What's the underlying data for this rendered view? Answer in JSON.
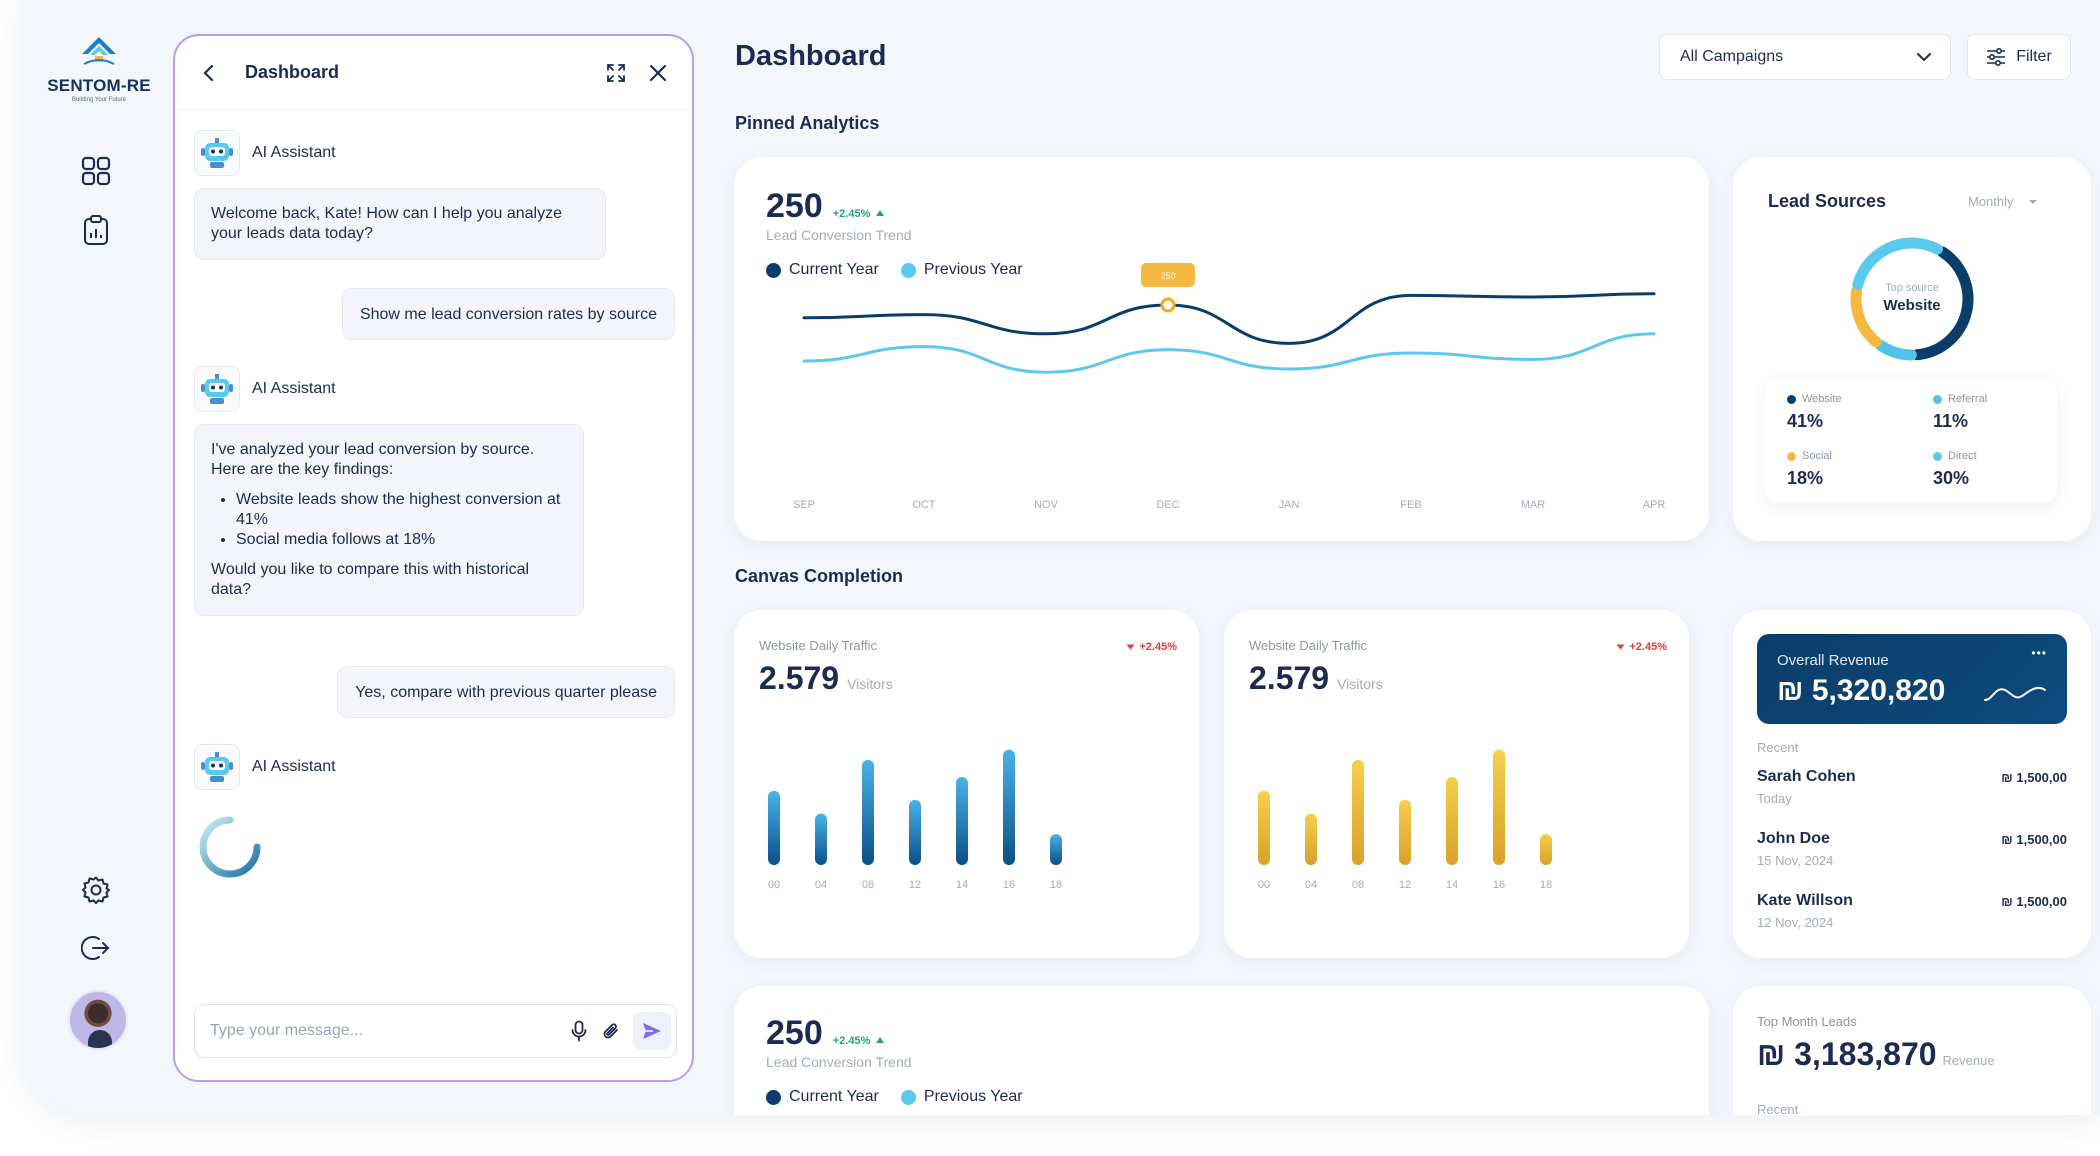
{
  "brand": {
    "name": "SENTOM-RE",
    "tagline": "Building Your Future"
  },
  "chat": {
    "title": "Dashboard",
    "assistant_name": "AI Assistant",
    "messages": {
      "ai1": "Welcome back, Kate! How can I help you analyze your leads data today?",
      "user1": "Show me lead conversion rates by source",
      "ai2_intro": "I've analyzed your lead conversion by source. Here are the key findings:",
      "ai2_bullet1": "Website leads show the highest conversion at 41%",
      "ai2_bullet2": "Social media follows at 18%",
      "ai2_outro": "Would you like to compare this with historical data?",
      "user2": "Yes, compare with previous quarter please"
    },
    "input_placeholder": "Type your message..."
  },
  "header": {
    "title": "Dashboard",
    "campaign_select": "All Campaigns",
    "filter_label": "Filter"
  },
  "sections": {
    "pinned": "Pinned Analytics",
    "canvas": "Canvas Completion"
  },
  "trend": {
    "value": "250",
    "change": "+2.45%",
    "label": "Lead Conversion Trend",
    "legend_current": "Current Year",
    "legend_previous": "Previous Year",
    "tooltip": "250"
  },
  "lead_sources": {
    "title": "Lead Sources",
    "period": "Monthly",
    "center_caption": "Top source",
    "center_value": "Website",
    "items": [
      {
        "name": "Website",
        "value": "41%",
        "color": "#0b3d6a"
      },
      {
        "name": "Referral",
        "value": "11%",
        "color": "#4fc3e8"
      },
      {
        "name": "Social",
        "value": "18%",
        "color": "#f5b942"
      },
      {
        "name": "Direct",
        "value": "30%",
        "color": "#5bc8ee"
      }
    ]
  },
  "traffic1": {
    "title": "Website Daily Traffic",
    "value": "2.579",
    "unit": "Visitors",
    "change": "+2.45%"
  },
  "traffic2": {
    "title": "Website Daily Traffic",
    "value": "2.579",
    "unit": "Visitors",
    "change": "+2.45%"
  },
  "revenue": {
    "title": "Overall Revenue",
    "value": "₪ 5,320,820",
    "more": "•••",
    "recent_label": "Recent",
    "recent": [
      {
        "name": "Sarah Cohen",
        "date": "Today",
        "amount": "₪ 1,500,00"
      },
      {
        "name": "John Doe",
        "date": "15 Nov, 2024",
        "amount": "₪ 1,500,00"
      },
      {
        "name": "Kate Willson",
        "date": "12 Nov, 2024",
        "amount": "₪ 1,500,00"
      }
    ]
  },
  "trend2": {
    "value": "250",
    "change": "+2.45%",
    "label": "Lead Conversion Trend",
    "legend_current": "Current Year",
    "legend_previous": "Previous Year"
  },
  "top_month": {
    "title": "Top Month Leads",
    "value": "₪ 3,183,870",
    "unit": "Revenue",
    "recent_label": "Recent"
  },
  "chart_data": [
    {
      "type": "line",
      "title": "Lead Conversion Trend",
      "categories": [
        "SEP",
        "OCT",
        "NOV",
        "DEC",
        "JAN",
        "FEB",
        "MAR",
        "APR"
      ],
      "series": [
        {
          "name": "Current Year",
          "color": "#0b3d6a",
          "values": [
            62,
            64,
            52,
            70,
            46,
            76,
            75,
            77
          ]
        },
        {
          "name": "Previous Year",
          "color": "#5bc8ee",
          "values": [
            35,
            44,
            28,
            42,
            30,
            40,
            36,
            52
          ]
        }
      ],
      "highlight": {
        "category": "DEC",
        "label": "250"
      },
      "ylim": [
        0,
        100
      ]
    },
    {
      "type": "pie",
      "title": "Lead Sources",
      "categories": [
        "Website",
        "Referral",
        "Social",
        "Direct"
      ],
      "values": [
        41,
        11,
        18,
        30
      ],
      "colors": [
        "#0b3d6a",
        "#4fc3e8",
        "#f5b942",
        "#5bc8ee"
      ]
    },
    {
      "type": "bar",
      "title": "Website Daily Traffic",
      "categories": [
        "00",
        "04",
        "08",
        "12",
        "14",
        "16",
        "18"
      ],
      "values": [
        65,
        45,
        92,
        57,
        77,
        101,
        27
      ],
      "ylim": [
        0,
        105
      ],
      "colors": [
        "#0a4f88",
        "#4ab3e8"
      ]
    },
    {
      "type": "bar",
      "title": "Website Daily Traffic",
      "categories": [
        "00",
        "04",
        "08",
        "12",
        "14",
        "16",
        "18"
      ],
      "values": [
        65,
        45,
        92,
        57,
        77,
        101,
        27
      ],
      "ylim": [
        0,
        105
      ],
      "colors": [
        "#d9a12a",
        "#f5d04a"
      ]
    }
  ]
}
